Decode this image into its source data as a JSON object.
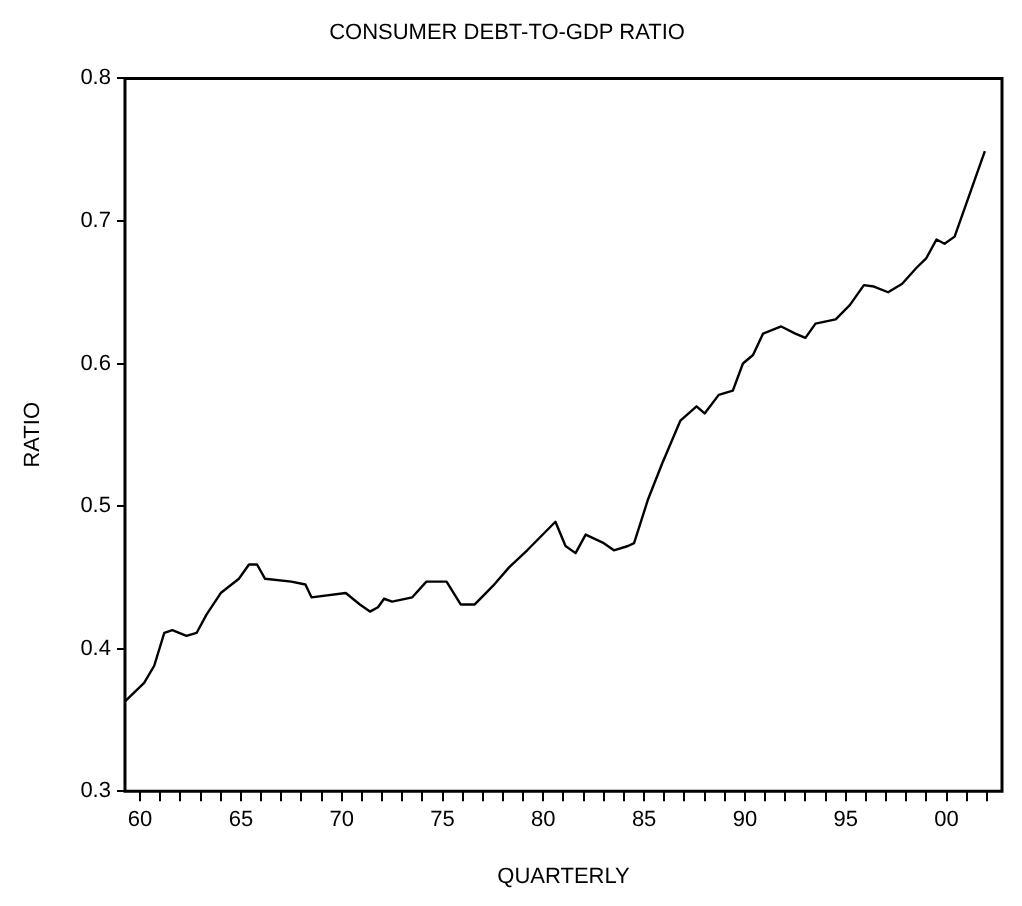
{
  "chart_data": {
    "type": "line",
    "title": "CONSUMER DEBT-TO-GDP RATIO",
    "xlabel": "QUARTERLY",
    "ylabel": "RATIO",
    "x": [
      1959.25,
      1960.2,
      1960.7,
      1961.2,
      1961.6,
      1962.3,
      1962.8,
      1963.3,
      1964.0,
      1964.9,
      1965.4,
      1965.8,
      1966.2,
      1967.5,
      1968.2,
      1968.5,
      1970.2,
      1970.9,
      1971.4,
      1971.8,
      1972.1,
      1972.5,
      1973.5,
      1974.2,
      1975.2,
      1975.9,
      1976.6,
      1977.5,
      1978.3,
      1979.2,
      1980.6,
      1981.1,
      1981.6,
      1982.1,
      1983.0,
      1983.5,
      1984.2,
      1984.5,
      1985.2,
      1985.9,
      1986.8,
      1987.6,
      1988.0,
      1988.7,
      1989.4,
      1989.9,
      1990.4,
      1990.9,
      1991.8,
      1992.5,
      1993.0,
      1993.5,
      1994.5,
      1995.2,
      1995.9,
      1996.4,
      1997.1,
      1997.8,
      1998.5,
      1999.0,
      1999.5,
      1999.9,
      2000.4,
      2000.9,
      2001.4,
      2001.9
    ],
    "series": [
      {
        "color": "#000000",
        "values": [
          0.363,
          0.376,
          0.388,
          0.411,
          0.413,
          0.409,
          0.411,
          0.424,
          0.439,
          0.449,
          0.459,
          0.459,
          0.449,
          0.447,
          0.445,
          0.436,
          0.439,
          0.431,
          0.426,
          0.429,
          0.435,
          0.433,
          0.436,
          0.447,
          0.447,
          0.431,
          0.431,
          0.444,
          0.457,
          0.469,
          0.489,
          0.472,
          0.467,
          0.48,
          0.474,
          0.469,
          0.472,
          0.474,
          0.505,
          0.53,
          0.56,
          0.57,
          0.565,
          0.578,
          0.581,
          0.6,
          0.606,
          0.621,
          0.626,
          0.621,
          0.618,
          0.628,
          0.631,
          0.641,
          0.655,
          0.654,
          0.65,
          0.656,
          0.667,
          0.674,
          0.687,
          0.684,
          0.689,
          0.709,
          0.729,
          0.749
        ]
      }
    ],
    "xlim": [
      1959.25,
      2002.75
    ],
    "xticks": [
      {
        "value": 1960,
        "label": "60"
      },
      {
        "value": 1961,
        "label": null
      },
      {
        "value": 1962,
        "label": null
      },
      {
        "value": 1963,
        "label": null
      },
      {
        "value": 1964,
        "label": null
      },
      {
        "value": 1965,
        "label": "65"
      },
      {
        "value": 1966,
        "label": null
      },
      {
        "value": 1967,
        "label": null
      },
      {
        "value": 1968,
        "label": null
      },
      {
        "value": 1969,
        "label": null
      },
      {
        "value": 1970,
        "label": "70"
      },
      {
        "value": 1971,
        "label": null
      },
      {
        "value": 1972,
        "label": null
      },
      {
        "value": 1973,
        "label": null
      },
      {
        "value": 1974,
        "label": null
      },
      {
        "value": 1975,
        "label": "75"
      },
      {
        "value": 1976,
        "label": null
      },
      {
        "value": 1977,
        "label": null
      },
      {
        "value": 1978,
        "label": null
      },
      {
        "value": 1979,
        "label": null
      },
      {
        "value": 1980,
        "label": "80"
      },
      {
        "value": 1981,
        "label": null
      },
      {
        "value": 1982,
        "label": null
      },
      {
        "value": 1983,
        "label": null
      },
      {
        "value": 1984,
        "label": null
      },
      {
        "value": 1985,
        "label": "85"
      },
      {
        "value": 1986,
        "label": null
      },
      {
        "value": 1987,
        "label": null
      },
      {
        "value": 1988,
        "label": null
      },
      {
        "value": 1989,
        "label": null
      },
      {
        "value": 1990,
        "label": "90"
      },
      {
        "value": 1991,
        "label": null
      },
      {
        "value": 1992,
        "label": null
      },
      {
        "value": 1993,
        "label": null
      },
      {
        "value": 1994,
        "label": null
      },
      {
        "value": 1995,
        "label": "95"
      },
      {
        "value": 1996,
        "label": null
      },
      {
        "value": 1997,
        "label": null
      },
      {
        "value": 1998,
        "label": null
      },
      {
        "value": 1999,
        "label": null
      },
      {
        "value": 2000,
        "label": "00"
      },
      {
        "value": 2001,
        "label": null
      },
      {
        "value": 2002,
        "label": null
      }
    ],
    "ylim": [
      0.3,
      0.8
    ],
    "yticks": [
      0.3,
      0.4,
      0.5,
      0.6,
      0.7,
      0.8
    ],
    "grid": false,
    "legend": false,
    "marker": "none",
    "line_style": "solid"
  }
}
